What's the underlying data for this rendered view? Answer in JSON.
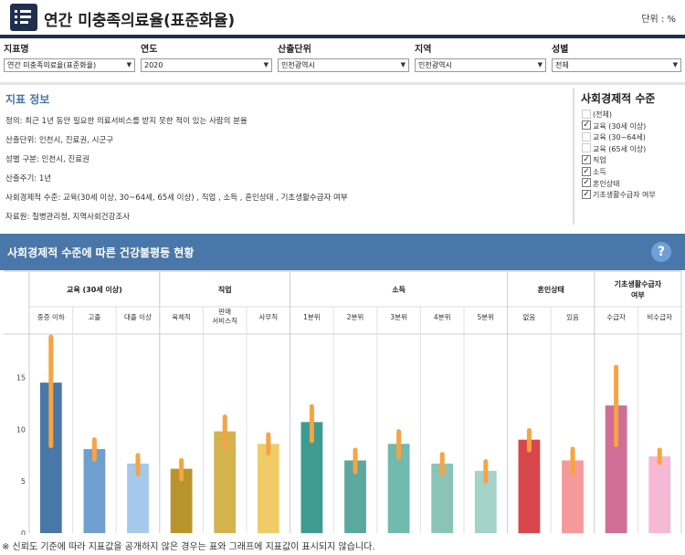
{
  "header": {
    "icon": "list-icon",
    "title": "연간 미충족의료율(표준화율)",
    "unit": "단위 : %"
  },
  "filters": [
    {
      "label": "지표명",
      "value": "연간 미충족의료율(표준화율)"
    },
    {
      "label": "연도",
      "value": "2020"
    },
    {
      "label": "산출단위",
      "value": "인천광역시"
    },
    {
      "label": "지역",
      "value": "인천광역시"
    },
    {
      "label": "성별",
      "value": "전체"
    }
  ],
  "info": {
    "title": "지표 정보",
    "lines": [
      "정의: 최근 1년 동안 필요한 의료서비스를 받지 못한 적이 있는 사람의 분율",
      "산출단위: 인천시, 진료권, 시군구",
      "성별 구분: 인천시, 진료권",
      "산출주기: 1년",
      "사회경제적 수준: 교육(30세 이상, 30~64세, 65세 이상) , 직업 , 소득 , 혼인상태 , 기초생활수급자 여부",
      "자료원: 질병관리청, 지역사회건강조사"
    ]
  },
  "ses_panel": {
    "title": "사회경제적 수준",
    "items": [
      {
        "label": "(전체)",
        "checked": false
      },
      {
        "label": "교육 (30세 이상)",
        "checked": true
      },
      {
        "label": "교육 (30~64세)",
        "checked": false
      },
      {
        "label": "교육 (65세 이상)",
        "checked": false
      },
      {
        "label": "직업",
        "checked": true
      },
      {
        "label": "소득",
        "checked": true
      },
      {
        "label": "혼인상태",
        "checked": true
      },
      {
        "label": "기초생활수급자 여부",
        "checked": true
      }
    ]
  },
  "chart_section": {
    "title": "사회경제적 수준에 따른 건강불평등 현황",
    "help_label": "?"
  },
  "chart_data": {
    "type": "bar",
    "ylim": [
      0,
      19
    ],
    "yticks": [
      "0",
      "5",
      "10",
      "15"
    ],
    "ytick_values": [
      0,
      5,
      10,
      15
    ],
    "groups": [
      {
        "name": "교육 (30세 이상)",
        "categories": [
          "중증 이하",
          "고졸",
          "대졸 이상"
        ]
      },
      {
        "name": "직업",
        "categories": [
          "육체직",
          "판매 서비스직",
          "사무직"
        ]
      },
      {
        "name": "소득",
        "categories": [
          "1분위",
          "2분위",
          "3분위",
          "4분위",
          "5분위"
        ]
      },
      {
        "name": "혼인상태",
        "categories": [
          "없음",
          "있음"
        ]
      },
      {
        "name": "기초생활수급자 여부",
        "categories": [
          "수급자",
          "비수급자"
        ]
      }
    ],
    "values": [
      14.5,
      8.1,
      6.7,
      6.2,
      9.8,
      8.6,
      10.7,
      7.0,
      8.6,
      6.7,
      6.0,
      9.0,
      7.0,
      12.3,
      7.4
    ],
    "ci_low": [
      8.4,
      7.1,
      5.7,
      5.2,
      8.3,
      7.7,
      8.9,
      5.9,
      7.3,
      5.7,
      5.0,
      8.0,
      5.8,
      8.5,
      6.8
    ],
    "ci_high": [
      18.9,
      9.0,
      7.5,
      7.0,
      11.2,
      9.5,
      12.2,
      8.0,
      9.8,
      7.6,
      6.9,
      9.9,
      8.1,
      16.0,
      8.0
    ],
    "colors": [
      "#4a77a9",
      "#6f9fcf",
      "#a5c9ea",
      "#b8952b",
      "#d4b24e",
      "#efcc67",
      "#3d9c8f",
      "#5ba99e",
      "#72b9ae",
      "#8cc3b9",
      "#a5d2c9",
      "#d7474c",
      "#f59a9a",
      "#cf6e96",
      "#f6b9d5"
    ],
    "ci_color": "#f6a443"
  },
  "footnote": "※ 신뢰도 기준에 따라 지표값을 공개하지 않은 경우는 표와 그래프에 지표값이 표시되지 않습니다."
}
